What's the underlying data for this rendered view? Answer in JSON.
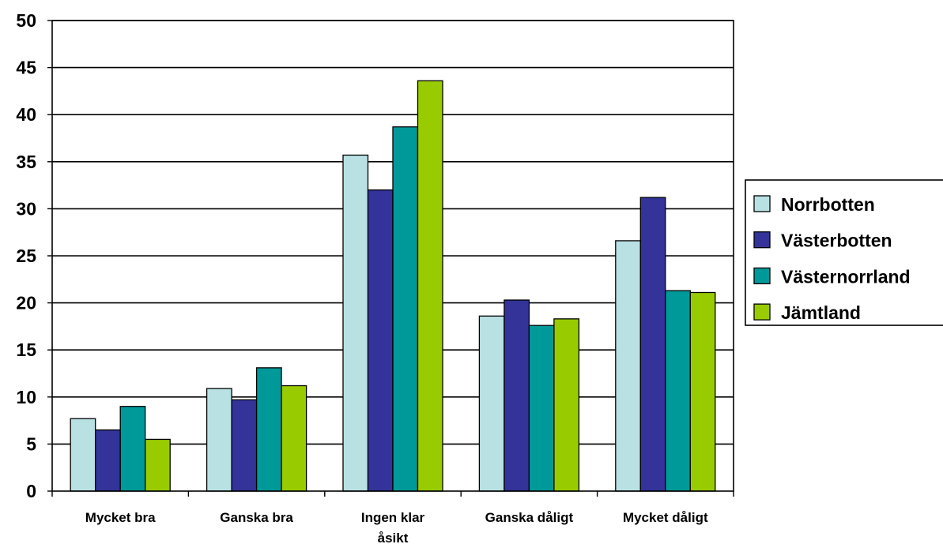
{
  "chart_data": {
    "type": "bar",
    "title": "",
    "xlabel": "",
    "ylabel": "",
    "ylim": [
      0,
      50
    ],
    "yticks": [
      "0",
      "5",
      "10",
      "15",
      "20",
      "25",
      "30",
      "35",
      "40",
      "45",
      "50"
    ],
    "grid": true,
    "legend_position": "right",
    "categories": [
      [
        "Mycket bra"
      ],
      [
        "Ganska bra"
      ],
      [
        "Ingen klar",
        "åsikt"
      ],
      [
        "Ganska dåligt"
      ],
      [
        "Mycket dåligt"
      ]
    ],
    "series": [
      {
        "name": "Norrbotten",
        "color": "#b9e1e3",
        "values": [
          7.7,
          10.9,
          35.7,
          18.6,
          26.6
        ]
      },
      {
        "name": "Västerbotten",
        "color": "#333399",
        "values": [
          6.5,
          9.7,
          32.0,
          20.3,
          31.2
        ]
      },
      {
        "name": "Västernorrland",
        "color": "#009999",
        "values": [
          9.0,
          13.1,
          38.7,
          17.6,
          21.3
        ]
      },
      {
        "name": "Jämtland",
        "color": "#99cc00",
        "values": [
          5.5,
          11.2,
          43.6,
          18.3,
          21.1
        ]
      }
    ]
  }
}
